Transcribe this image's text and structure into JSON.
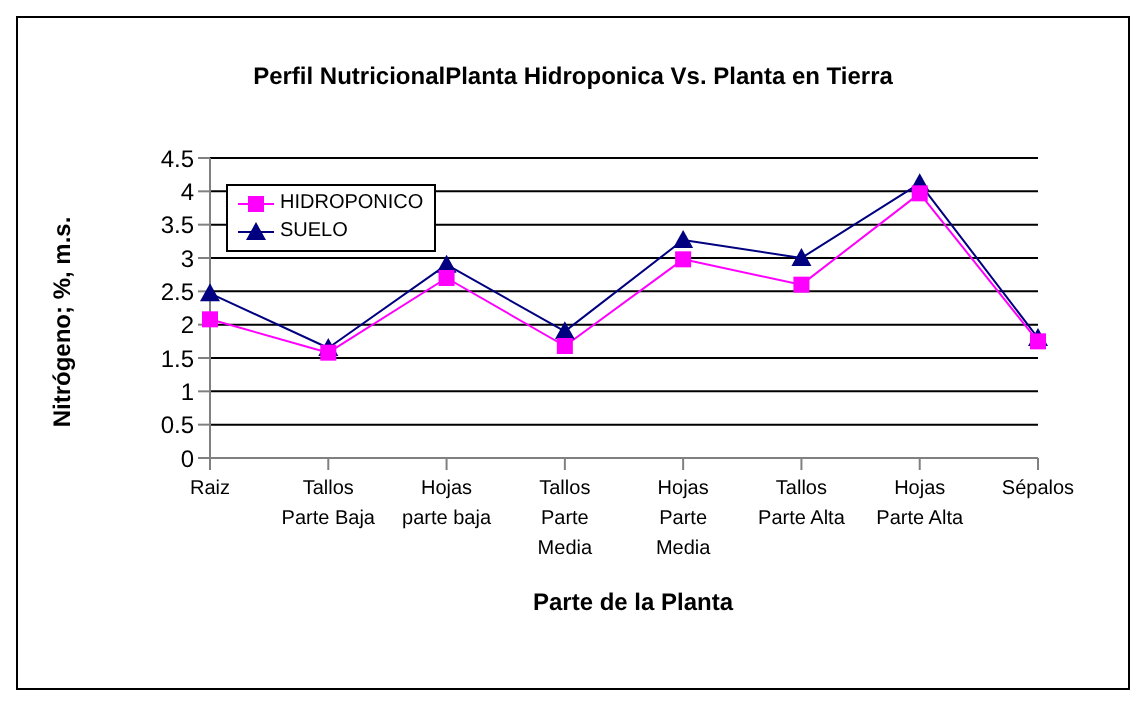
{
  "chart_data": {
    "type": "line",
    "title": "Perfil NutricionalPlanta Hidroponica Vs. Planta en Tierra",
    "xlabel": "Parte de la Planta",
    "ylabel": "Nitrógeno; %, m.s.",
    "categories": [
      "Raiz",
      "Tallos Parte Baja",
      "Hojas parte baja",
      "Tallos Parte Media",
      "Hojas Parte Media",
      "Tallos Parte Alta",
      "Hojas Parte Alta",
      "Sépalos"
    ],
    "series": [
      {
        "name": "HIDROPONICO",
        "color": "#ff00ff",
        "marker": "square",
        "values": [
          2.08,
          1.58,
          2.7,
          1.68,
          2.98,
          2.6,
          3.97,
          1.75
        ]
      },
      {
        "name": "SUELO",
        "color": "#000080",
        "marker": "triangle",
        "values": [
          2.47,
          1.65,
          2.9,
          1.9,
          3.27,
          3.0,
          4.12,
          1.8
        ]
      }
    ],
    "ylim": [
      0,
      4.5
    ],
    "yticks": [
      0,
      0.5,
      1,
      1.5,
      2,
      2.5,
      3,
      3.5,
      4,
      4.5
    ],
    "grid": "y",
    "legend": "top left"
  }
}
